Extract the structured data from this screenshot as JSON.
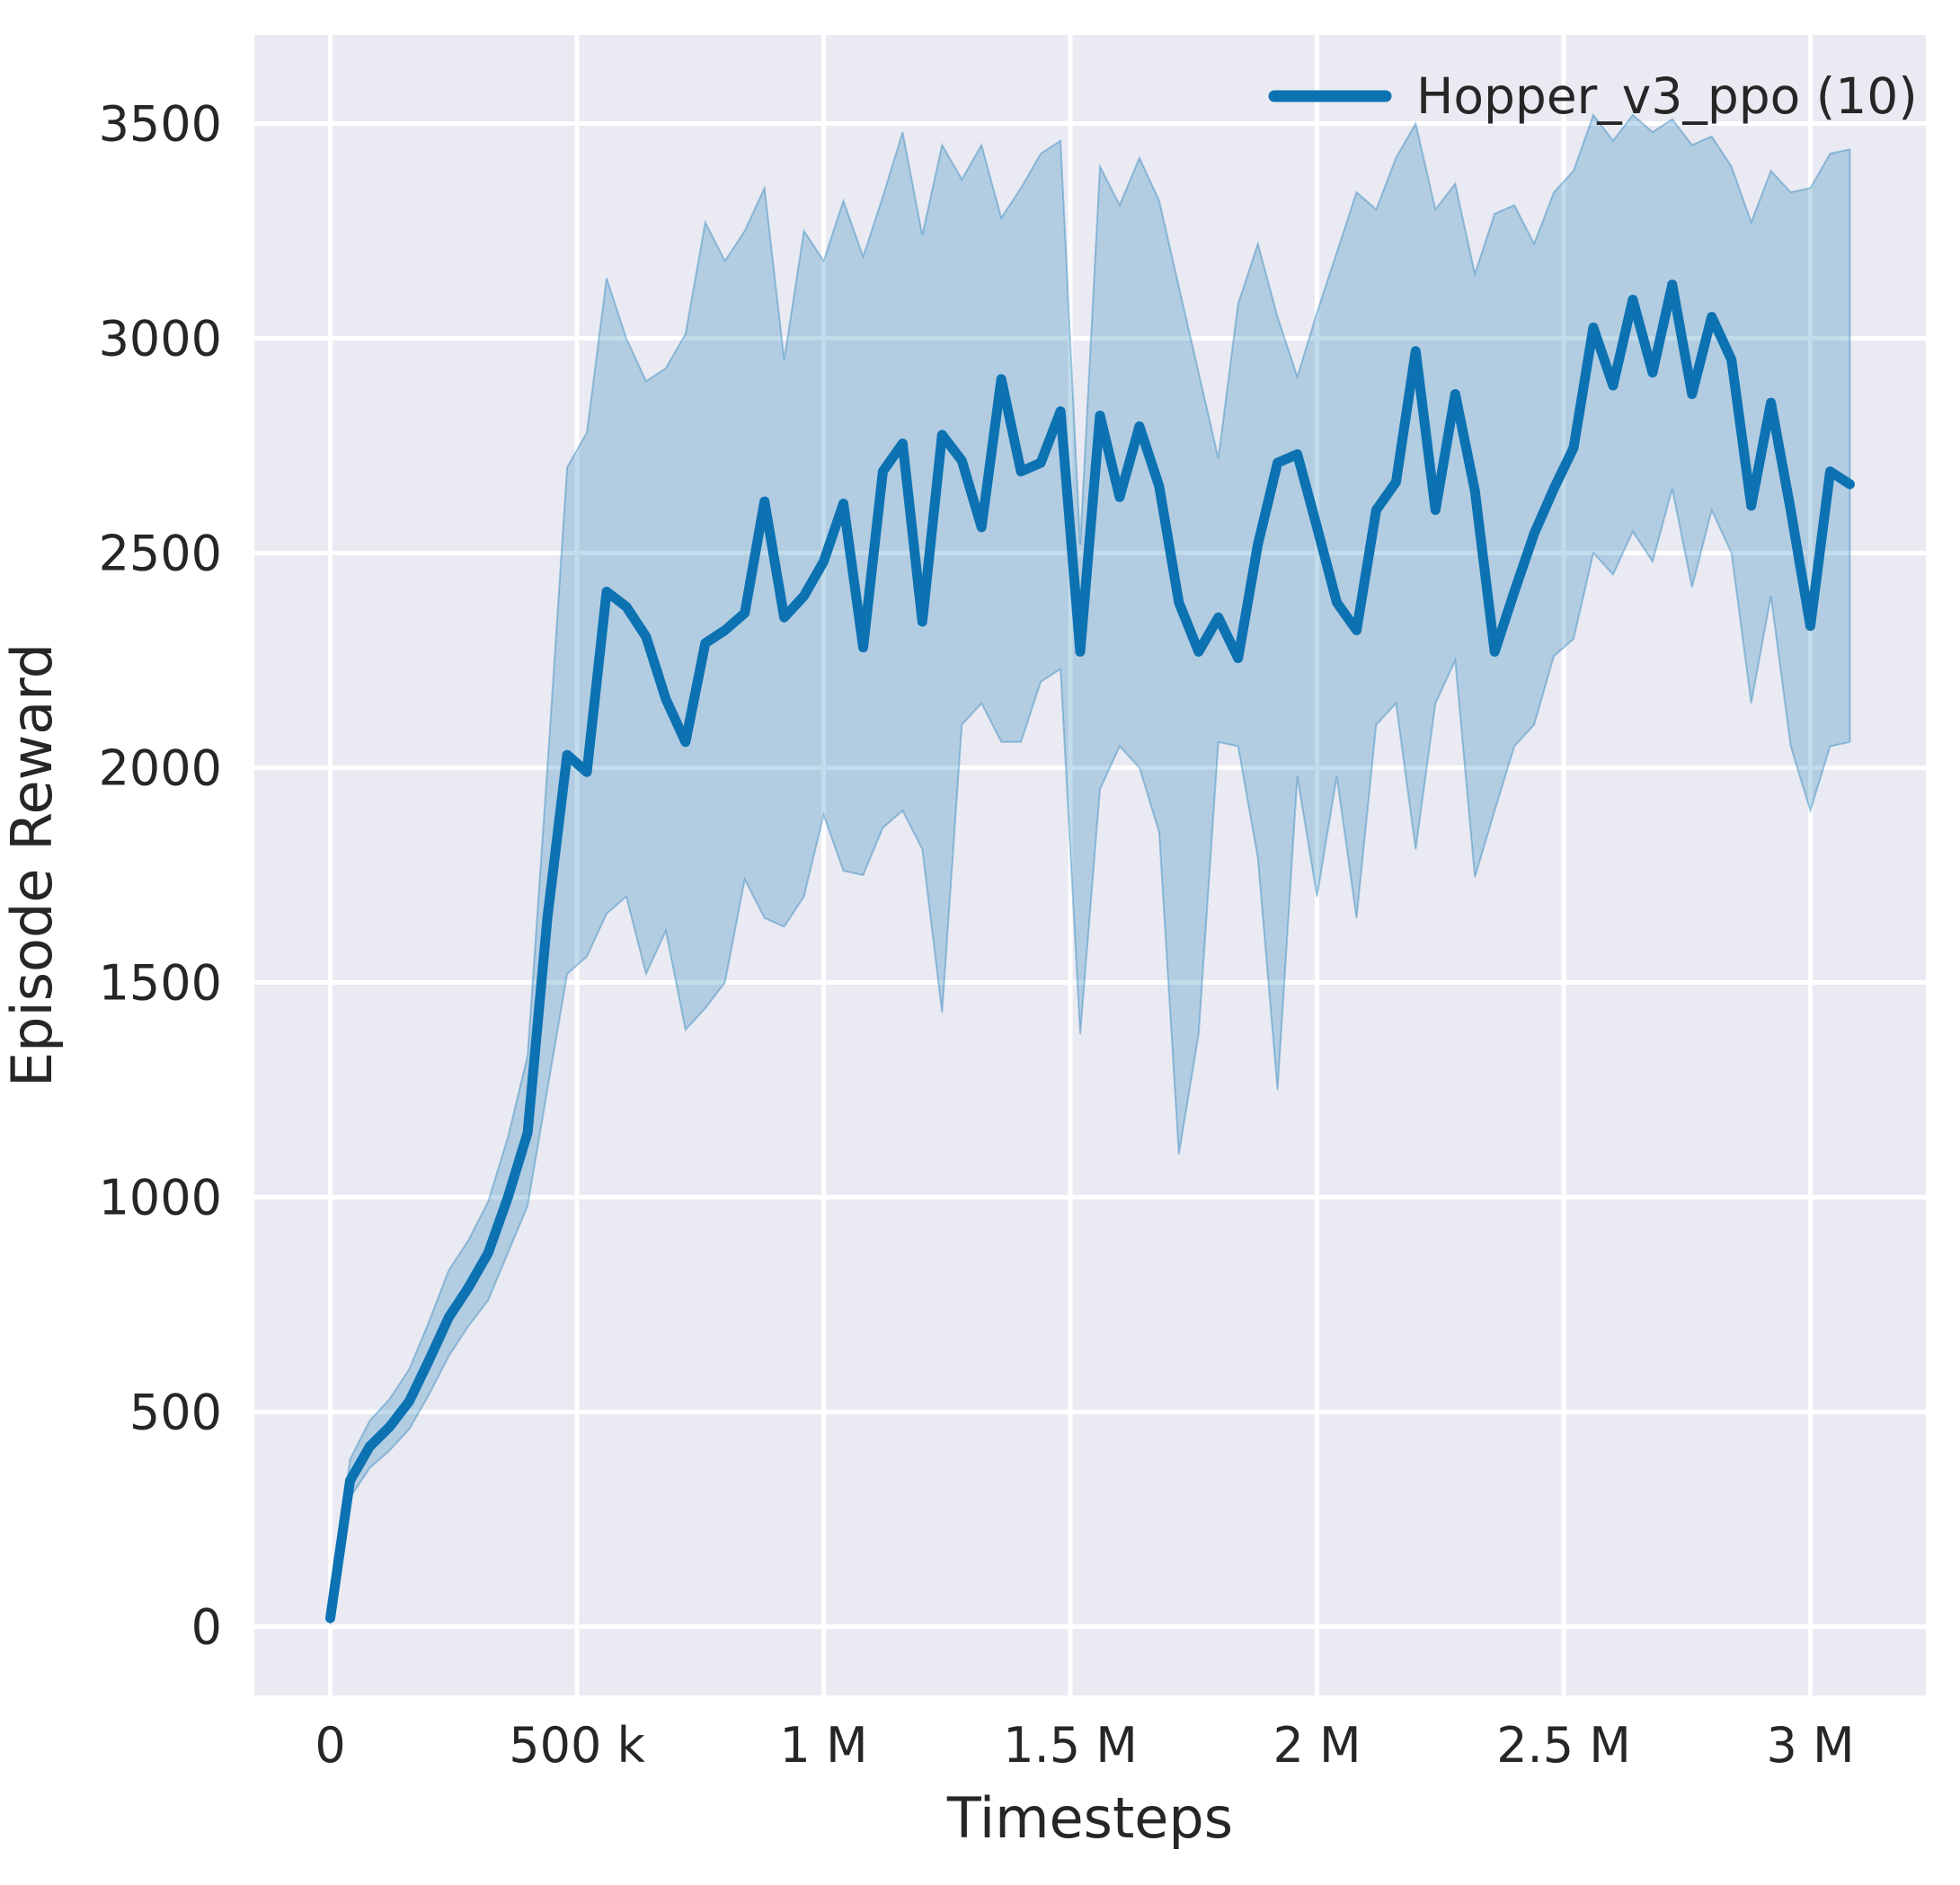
{
  "chart_data": {
    "type": "line",
    "title": "",
    "xlabel": "Timesteps",
    "ylabel": "Episode Reward",
    "legend": {
      "position": "upper right",
      "entries": [
        {
          "label": "Hopper_v3_ppo (10)",
          "color": "#0c72b2"
        }
      ]
    },
    "grid": true,
    "plot_background": "#eaeaf2",
    "grid_color": "#ffffff",
    "text_color": "#262626",
    "line_color": "#0c72b2",
    "band_fill_opacity": 0.25,
    "xlim": [
      -154000,
      3234000
    ],
    "ylim": [
      -160,
      3706
    ],
    "xticks": {
      "values": [
        0,
        500000,
        1000000,
        1500000,
        2000000,
        2500000,
        3000000
      ],
      "labels": [
        "0",
        "500 k",
        "1 M",
        "1.5 M",
        "2 M",
        "2.5 M",
        "3 M"
      ]
    },
    "yticks": {
      "values": [
        0,
        500,
        1000,
        1500,
        2000,
        2500,
        3000,
        3500
      ],
      "labels": [
        "0",
        "500",
        "1000",
        "1500",
        "2000",
        "2500",
        "3000",
        "3500"
      ]
    },
    "x": [
      0,
      40000,
      80000,
      120000,
      160000,
      200000,
      240000,
      280000,
      320000,
      360000,
      400000,
      440000,
      480000,
      520000,
      560000,
      600000,
      640000,
      680000,
      720000,
      760000,
      800000,
      840000,
      880000,
      920000,
      960000,
      1000000,
      1040000,
      1080000,
      1120000,
      1160000,
      1200000,
      1240000,
      1280000,
      1320000,
      1360000,
      1400000,
      1440000,
      1480000,
      1520000,
      1560000,
      1600000,
      1640000,
      1680000,
      1720000,
      1760000,
      1800000,
      1840000,
      1880000,
      1920000,
      1960000,
      2000000,
      2040000,
      2080000,
      2120000,
      2160000,
      2200000,
      2240000,
      2280000,
      2320000,
      2360000,
      2400000,
      2440000,
      2480000,
      2520000,
      2560000,
      2600000,
      2640000,
      2680000,
      2720000,
      2760000,
      2800000,
      2840000,
      2880000,
      2920000,
      2960000,
      3000000,
      3040000,
      3080000
    ],
    "series": [
      {
        "name": "Hopper_v3_ppo (10)",
        "mean": [
          20,
          340,
          420,
          465,
          525,
          620,
          720,
          790,
          870,
          1000,
          1150,
          1650,
          2030,
          1990,
          2410,
          2375,
          2305,
          2160,
          2060,
          2290,
          2320,
          2360,
          2620,
          2350,
          2400,
          2480,
          2615,
          2280,
          2690,
          2755,
          2340,
          2775,
          2715,
          2560,
          2905,
          2690,
          2710,
          2830,
          2270,
          2820,
          2630,
          2795,
          2655,
          2385,
          2270,
          2350,
          2255,
          2520,
          2710,
          2730,
          2560,
          2385,
          2320,
          2600,
          2665,
          2970,
          2600,
          2870,
          2645,
          2270,
          2410,
          2545,
          2650,
          2745,
          3025,
          2890,
          3090,
          2920,
          3125,
          2870,
          3050,
          2950,
          2610,
          2850,
          2600,
          2330,
          2690,
          2660
        ],
        "lower": [
          5,
          300,
          370,
          410,
          460,
          540,
          630,
          700,
          760,
          870,
          980,
          1250,
          1520,
          1560,
          1660,
          1700,
          1520,
          1620,
          1390,
          1440,
          1500,
          1740,
          1650,
          1630,
          1700,
          1890,
          1760,
          1750,
          1860,
          1900,
          1810,
          1430,
          2100,
          2150,
          2060,
          2060,
          2200,
          2230,
          1380,
          1950,
          2050,
          2000,
          1850,
          1100,
          1380,
          2060,
          2050,
          1790,
          1250,
          1980,
          1700,
          1980,
          1650,
          2100,
          2150,
          1810,
          2150,
          2250,
          1745,
          1900,
          2050,
          2100,
          2260,
          2300,
          2500,
          2450,
          2550,
          2480,
          2650,
          2420,
          2600,
          2500,
          2150,
          2400,
          2050,
          1900,
          2050,
          2060
        ],
        "upper": [
          40,
          390,
          480,
          530,
          600,
          710,
          830,
          900,
          990,
          1140,
          1330,
          2000,
          2700,
          2780,
          3140,
          3000,
          2900,
          2930,
          3010,
          3270,
          3180,
          3250,
          3350,
          2950,
          3250,
          3180,
          3320,
          3190,
          3330,
          3480,
          3240,
          3450,
          3370,
          3450,
          3280,
          3350,
          3430,
          3460,
          2520,
          3400,
          3310,
          3420,
          3320,
          3120,
          2920,
          2720,
          3080,
          3220,
          3050,
          2910,
          3060,
          3200,
          3340,
          3300,
          3420,
          3500,
          3300,
          3360,
          3150,
          3290,
          3310,
          3220,
          3340,
          3390,
          3520,
          3460,
          3520,
          3480,
          3510,
          3450,
          3470,
          3400,
          3270,
          3390,
          3340,
          3350,
          3430,
          3440
        ]
      }
    ]
  }
}
